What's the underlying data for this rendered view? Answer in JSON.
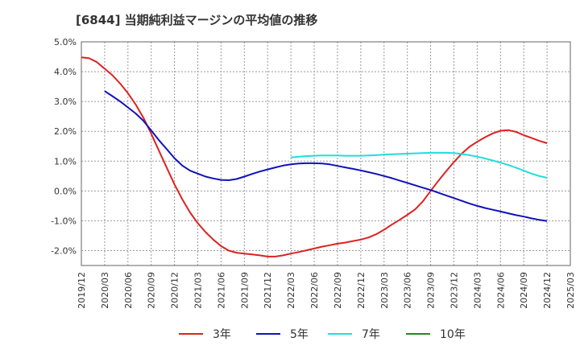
{
  "chart_data": {
    "type": "line",
    "title": "[6844]  当期純利益マージンの平均値の推移",
    "xlabel": "",
    "ylabel": "",
    "ylim": [
      -2.5,
      5.0
    ],
    "y_ticks": [
      5.0,
      4.0,
      3.0,
      2.0,
      1.0,
      0.0,
      -1.0,
      -2.0
    ],
    "y_tick_labels": [
      "5.0%",
      "4.0%",
      "3.0%",
      "2.0%",
      "1.0%",
      "0.0%",
      "-1.0%",
      "-2.0%"
    ],
    "x_tick_labels": [
      "2019/12",
      "2020/03",
      "2020/06",
      "2020/09",
      "2020/12",
      "2021/03",
      "2021/06",
      "2021/09",
      "2021/12",
      "2022/03",
      "2022/06",
      "2022/09",
      "2022/12",
      "2023/03",
      "2023/06",
      "2023/09",
      "2023/12",
      "2024/03",
      "2024/06",
      "2024/09",
      "2024/12",
      "2025/03"
    ],
    "grid": true,
    "legend_position": "bottom",
    "series": [
      {
        "name": "3年",
        "color": "#dd2222",
        "points": [
          [
            "2019/12",
            4.48
          ],
          [
            "2020/01",
            4.45
          ],
          [
            "2020/02",
            4.32
          ],
          [
            "2020/03",
            4.1
          ],
          [
            "2020/04",
            3.88
          ],
          [
            "2020/05",
            3.6
          ],
          [
            "2020/06",
            3.28
          ],
          [
            "2020/07",
            2.9
          ],
          [
            "2020/08",
            2.45
          ],
          [
            "2020/09",
            1.92
          ],
          [
            "2020/10",
            1.35
          ],
          [
            "2020/11",
            0.78
          ],
          [
            "2020/12",
            0.22
          ],
          [
            "2021/01",
            -0.28
          ],
          [
            "2021/02",
            -0.72
          ],
          [
            "2021/03",
            -1.08
          ],
          [
            "2021/04",
            -1.38
          ],
          [
            "2021/05",
            -1.63
          ],
          [
            "2021/06",
            -1.85
          ],
          [
            "2021/07",
            -2.0
          ],
          [
            "2021/08",
            -2.07
          ],
          [
            "2021/09",
            -2.1
          ],
          [
            "2021/10",
            -2.13
          ],
          [
            "2021/11",
            -2.16
          ],
          [
            "2021/12",
            -2.2
          ],
          [
            "2022/01",
            -2.2
          ],
          [
            "2022/02",
            -2.16
          ],
          [
            "2022/03",
            -2.1
          ],
          [
            "2022/04",
            -2.05
          ],
          [
            "2022/05",
            -1.99
          ],
          [
            "2022/06",
            -1.93
          ],
          [
            "2022/07",
            -1.87
          ],
          [
            "2022/08",
            -1.82
          ],
          [
            "2022/09",
            -1.77
          ],
          [
            "2022/10",
            -1.73
          ],
          [
            "2022/11",
            -1.68
          ],
          [
            "2022/12",
            -1.63
          ],
          [
            "2023/01",
            -1.56
          ],
          [
            "2023/02",
            -1.45
          ],
          [
            "2023/03",
            -1.3
          ],
          [
            "2023/04",
            -1.13
          ],
          [
            "2023/05",
            -0.97
          ],
          [
            "2023/06",
            -0.8
          ],
          [
            "2023/07",
            -0.62
          ],
          [
            "2023/08",
            -0.35
          ],
          [
            "2023/09",
            0.0
          ],
          [
            "2023/10",
            0.34
          ],
          [
            "2023/11",
            0.66
          ],
          [
            "2023/12",
            0.97
          ],
          [
            "2024/01",
            1.25
          ],
          [
            "2024/02",
            1.48
          ],
          [
            "2024/03",
            1.65
          ],
          [
            "2024/04",
            1.8
          ],
          [
            "2024/05",
            1.93
          ],
          [
            "2024/06",
            2.02
          ],
          [
            "2024/07",
            2.04
          ],
          [
            "2024/08",
            1.98
          ],
          [
            "2024/09",
            1.87
          ],
          [
            "2024/10",
            1.78
          ],
          [
            "2024/11",
            1.68
          ],
          [
            "2024/12",
            1.6
          ]
        ]
      },
      {
        "name": "5年",
        "color": "#1111bb",
        "points": [
          [
            "2020/03",
            3.35
          ],
          [
            "2020/04",
            3.18
          ],
          [
            "2020/05",
            3.0
          ],
          [
            "2020/06",
            2.8
          ],
          [
            "2020/07",
            2.6
          ],
          [
            "2020/08",
            2.35
          ],
          [
            "2020/09",
            2.03
          ],
          [
            "2020/10",
            1.7
          ],
          [
            "2020/11",
            1.4
          ],
          [
            "2020/12",
            1.1
          ],
          [
            "2021/01",
            0.85
          ],
          [
            "2021/02",
            0.68
          ],
          [
            "2021/03",
            0.58
          ],
          [
            "2021/04",
            0.48
          ],
          [
            "2021/05",
            0.42
          ],
          [
            "2021/06",
            0.37
          ],
          [
            "2021/07",
            0.36
          ],
          [
            "2021/08",
            0.4
          ],
          [
            "2021/09",
            0.48
          ],
          [
            "2021/10",
            0.57
          ],
          [
            "2021/11",
            0.65
          ],
          [
            "2021/12",
            0.72
          ],
          [
            "2022/01",
            0.79
          ],
          [
            "2022/02",
            0.85
          ],
          [
            "2022/03",
            0.89
          ],
          [
            "2022/04",
            0.92
          ],
          [
            "2022/05",
            0.93
          ],
          [
            "2022/06",
            0.93
          ],
          [
            "2022/07",
            0.92
          ],
          [
            "2022/08",
            0.89
          ],
          [
            "2022/09",
            0.84
          ],
          [
            "2022/10",
            0.79
          ],
          [
            "2022/11",
            0.74
          ],
          [
            "2022/12",
            0.69
          ],
          [
            "2023/01",
            0.63
          ],
          [
            "2023/02",
            0.57
          ],
          [
            "2023/03",
            0.5
          ],
          [
            "2023/04",
            0.43
          ],
          [
            "2023/05",
            0.35
          ],
          [
            "2023/06",
            0.27
          ],
          [
            "2023/07",
            0.19
          ],
          [
            "2023/08",
            0.11
          ],
          [
            "2023/09",
            0.03
          ],
          [
            "2023/10",
            -0.06
          ],
          [
            "2023/11",
            -0.15
          ],
          [
            "2023/12",
            -0.24
          ],
          [
            "2024/01",
            -0.33
          ],
          [
            "2024/02",
            -0.42
          ],
          [
            "2024/03",
            -0.5
          ],
          [
            "2024/04",
            -0.57
          ],
          [
            "2024/05",
            -0.63
          ],
          [
            "2024/06",
            -0.69
          ],
          [
            "2024/07",
            -0.75
          ],
          [
            "2024/08",
            -0.81
          ],
          [
            "2024/09",
            -0.86
          ],
          [
            "2024/10",
            -0.92
          ],
          [
            "2024/11",
            -0.97
          ],
          [
            "2024/12",
            -1.01
          ]
        ]
      },
      {
        "name": "7年",
        "color": "#22dddd",
        "points": [
          [
            "2022/03",
            1.12
          ],
          [
            "2022/04",
            1.15
          ],
          [
            "2022/05",
            1.17
          ],
          [
            "2022/06",
            1.18
          ],
          [
            "2022/07",
            1.19
          ],
          [
            "2022/08",
            1.19
          ],
          [
            "2022/09",
            1.19
          ],
          [
            "2022/10",
            1.18
          ],
          [
            "2022/11",
            1.18
          ],
          [
            "2022/12",
            1.18
          ],
          [
            "2023/01",
            1.19
          ],
          [
            "2023/02",
            1.2
          ],
          [
            "2023/03",
            1.22
          ],
          [
            "2023/04",
            1.23
          ],
          [
            "2023/05",
            1.24
          ],
          [
            "2023/06",
            1.25
          ],
          [
            "2023/07",
            1.26
          ],
          [
            "2023/08",
            1.27
          ],
          [
            "2023/09",
            1.28
          ],
          [
            "2023/10",
            1.28
          ],
          [
            "2023/11",
            1.28
          ],
          [
            "2023/12",
            1.27
          ],
          [
            "2024/01",
            1.24
          ],
          [
            "2024/02",
            1.2
          ],
          [
            "2024/03",
            1.15
          ],
          [
            "2024/04",
            1.09
          ],
          [
            "2024/05",
            1.02
          ],
          [
            "2024/06",
            0.95
          ],
          [
            "2024/07",
            0.87
          ],
          [
            "2024/08",
            0.78
          ],
          [
            "2024/09",
            0.68
          ],
          [
            "2024/10",
            0.58
          ],
          [
            "2024/11",
            0.5
          ],
          [
            "2024/12",
            0.44
          ]
        ]
      },
      {
        "name": "10年",
        "color": "#228822",
        "points": []
      }
    ]
  }
}
